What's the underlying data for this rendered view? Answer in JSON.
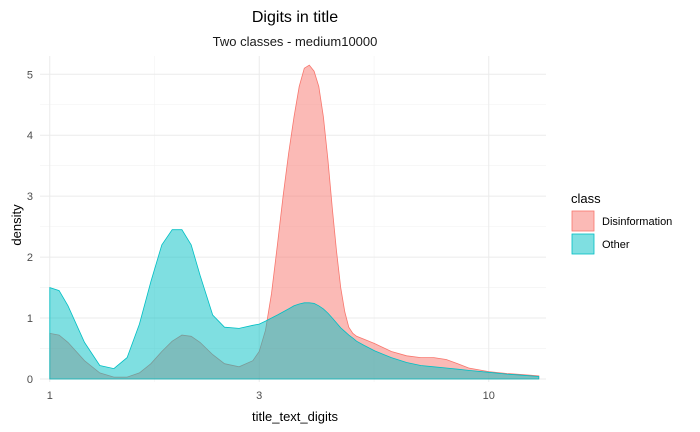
{
  "chart_data": {
    "type": "area",
    "title": "Digits in title",
    "subtitle": "Two classes - medium10000",
    "xlabel": "title_text_digits",
    "ylabel": "density",
    "x_scale": "log10",
    "xlim": [
      0.95,
      13.5
    ],
    "ylim": [
      -0.05,
      5.3
    ],
    "x_ticks": [
      1,
      3,
      10
    ],
    "x_minor_ticks": [
      1.73,
      5.48
    ],
    "y_ticks": [
      0,
      1,
      2,
      3,
      4,
      5
    ],
    "grid": true,
    "legend": {
      "title": "class",
      "position": "right"
    },
    "series": [
      {
        "name": "Disinformation",
        "color": "#F8766D",
        "x": [
          1.0,
          1.05,
          1.1,
          1.2,
          1.3,
          1.4,
          1.5,
          1.6,
          1.7,
          1.8,
          1.9,
          2.0,
          2.1,
          2.2,
          2.35,
          2.5,
          2.7,
          2.9,
          3.0,
          3.1,
          3.2,
          3.3,
          3.4,
          3.5,
          3.6,
          3.7,
          3.8,
          3.9,
          4.0,
          4.1,
          4.2,
          4.3,
          4.4,
          4.5,
          4.6,
          4.7,
          4.8,
          4.9,
          5.0,
          5.2,
          5.5,
          6.0,
          6.5,
          7.0,
          7.5,
          8.0,
          8.5,
          9.0,
          10.0,
          11.0,
          12.0,
          13.0
        ],
        "y": [
          0.75,
          0.72,
          0.6,
          0.3,
          0.1,
          0.03,
          0.03,
          0.1,
          0.25,
          0.45,
          0.62,
          0.72,
          0.7,
          0.6,
          0.4,
          0.25,
          0.2,
          0.3,
          0.45,
          0.8,
          1.4,
          2.2,
          3.0,
          3.7,
          4.3,
          4.8,
          5.1,
          5.15,
          5.05,
          4.8,
          4.3,
          3.6,
          2.8,
          2.1,
          1.5,
          1.1,
          0.85,
          0.75,
          0.7,
          0.65,
          0.58,
          0.45,
          0.38,
          0.35,
          0.35,
          0.32,
          0.25,
          0.18,
          0.12,
          0.09,
          0.07,
          0.05
        ]
      },
      {
        "name": "Other",
        "color": "#00BFC4",
        "x": [
          1.0,
          1.05,
          1.1,
          1.2,
          1.3,
          1.4,
          1.5,
          1.6,
          1.7,
          1.8,
          1.9,
          2.0,
          2.1,
          2.2,
          2.35,
          2.5,
          2.7,
          2.9,
          3.0,
          3.1,
          3.2,
          3.3,
          3.4,
          3.5,
          3.6,
          3.7,
          3.8,
          3.9,
          4.0,
          4.1,
          4.2,
          4.3,
          4.4,
          4.5,
          4.6,
          4.7,
          4.8,
          4.9,
          5.0,
          5.2,
          5.5,
          6.0,
          6.5,
          7.0,
          7.5,
          8.0,
          8.5,
          9.0,
          10.0,
          11.0,
          12.0,
          13.0
        ],
        "y": [
          1.5,
          1.45,
          1.2,
          0.6,
          0.22,
          0.17,
          0.35,
          0.9,
          1.6,
          2.2,
          2.45,
          2.45,
          2.2,
          1.7,
          1.05,
          0.85,
          0.83,
          0.88,
          0.9,
          0.95,
          1.0,
          1.05,
          1.1,
          1.15,
          1.2,
          1.23,
          1.25,
          1.25,
          1.24,
          1.2,
          1.15,
          1.08,
          1.0,
          0.92,
          0.84,
          0.78,
          0.72,
          0.67,
          0.62,
          0.55,
          0.46,
          0.35,
          0.27,
          0.22,
          0.2,
          0.18,
          0.16,
          0.14,
          0.11,
          0.08,
          0.06,
          0.04
        ]
      }
    ]
  }
}
